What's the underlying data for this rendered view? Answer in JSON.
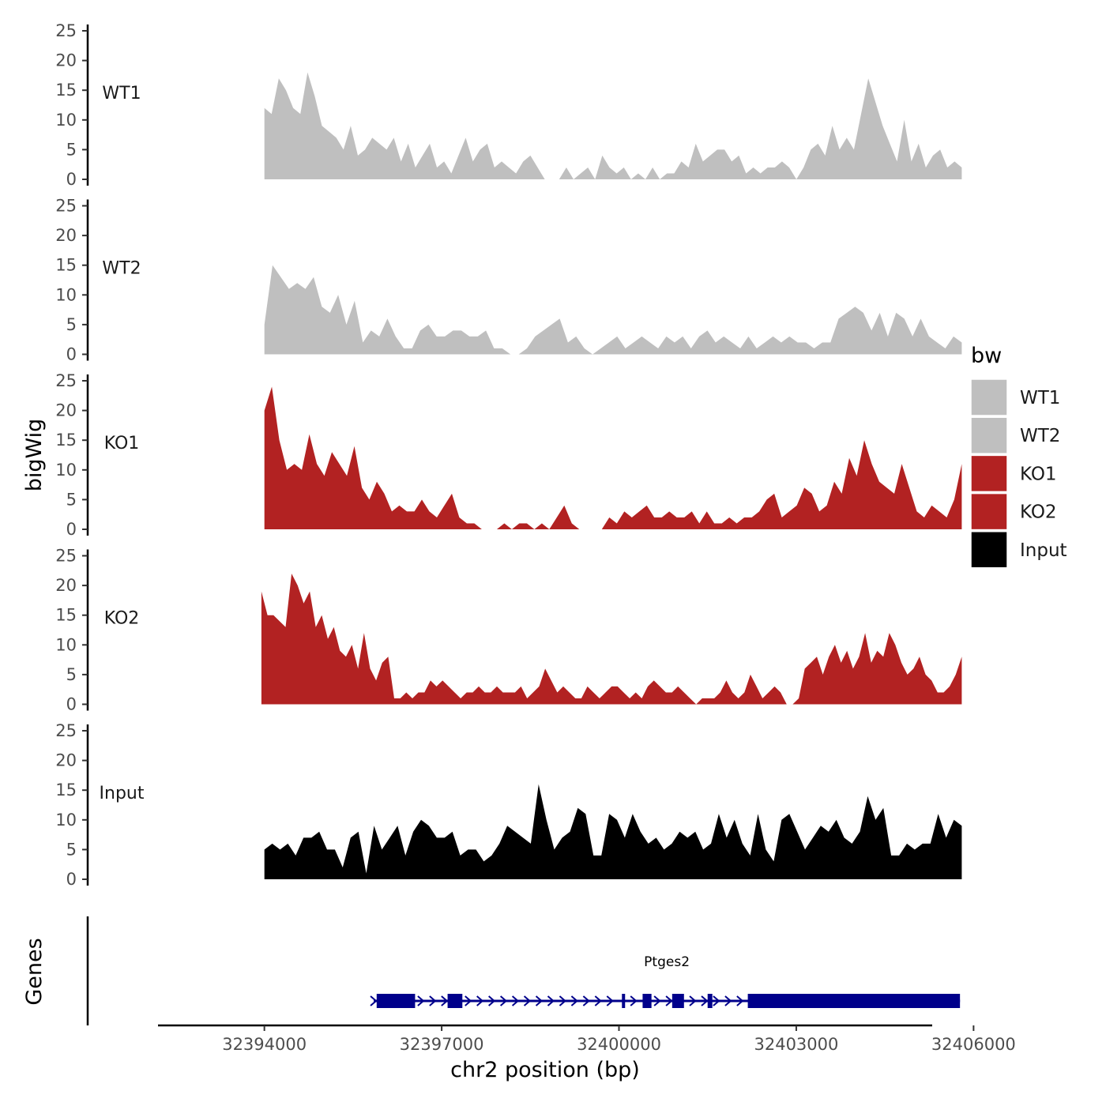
{
  "chart_data": {
    "type": "area",
    "ylabel": "bigWig",
    "xlabel": "chr2 position (bp)",
    "genes_label": "Genes",
    "legend": {
      "title": "bw",
      "entries": [
        {
          "label": "WT1",
          "color": "#bfbfbf"
        },
        {
          "label": "WT2",
          "color": "#bfbfbf"
        },
        {
          "label": "KO1",
          "color": "#b22222"
        },
        {
          "label": "KO2",
          "color": "#b22222"
        },
        {
          "label": "Input",
          "color": "#000000"
        }
      ]
    },
    "xlim": [
      32392200,
      32405300
    ],
    "x_ticks": [
      32394000,
      32397000,
      32400000,
      32403000,
      32406000
    ],
    "x_tick_labels": [
      "32394000",
      "32397000",
      "32400000",
      "32403000",
      "32406000"
    ],
    "ylim": [
      0,
      25
    ],
    "y_ticks": [
      0,
      5,
      10,
      15,
      20,
      25
    ],
    "y_tick_labels": [
      "0",
      "5",
      "10",
      "15",
      "20",
      "25"
    ],
    "series": [
      {
        "name": "WT1",
        "color": "#bfbfbf",
        "x_start": 32394000,
        "x_end": 32405800,
        "values": [
          12,
          11,
          17,
          15,
          12,
          11,
          18,
          14,
          9,
          8,
          7,
          5,
          9,
          4,
          5,
          7,
          6,
          5,
          7,
          3,
          6,
          2,
          4,
          6,
          2,
          3,
          1,
          4,
          7,
          3,
          5,
          6,
          2,
          3,
          2,
          1,
          3,
          4,
          2,
          0,
          0,
          0,
          2,
          0,
          1,
          2,
          0,
          4,
          2,
          1,
          2,
          0,
          1,
          0,
          2,
          0,
          1,
          1,
          3,
          2,
          6,
          3,
          4,
          5,
          5,
          3,
          4,
          1,
          2,
          1,
          2,
          2,
          3,
          2,
          0,
          2,
          5,
          6,
          4,
          9,
          5,
          7,
          5,
          11,
          17,
          13,
          9,
          6,
          3,
          10,
          3,
          6,
          2,
          4,
          5,
          2,
          3,
          2
        ]
      },
      {
        "name": "WT2",
        "color": "#bfbfbf",
        "x_start": 32394000,
        "x_end": 32405800,
        "values": [
          5,
          15,
          13,
          11,
          12,
          11,
          13,
          8,
          7,
          10,
          5,
          9,
          2,
          4,
          3,
          6,
          3,
          1,
          1,
          4,
          5,
          3,
          3,
          4,
          4,
          3,
          3,
          4,
          1,
          1,
          0,
          0,
          1,
          3,
          4,
          5,
          6,
          2,
          3,
          1,
          0,
          1,
          2,
          3,
          1,
          2,
          3,
          2,
          1,
          3,
          2,
          3,
          1,
          3,
          4,
          2,
          3,
          2,
          1,
          3,
          1,
          2,
          3,
          2,
          3,
          2,
          2,
          1,
          2,
          2,
          6,
          7,
          8,
          7,
          4,
          7,
          3,
          7,
          6,
          3,
          6,
          3,
          2,
          1,
          3,
          2
        ]
      },
      {
        "name": "KO1",
        "color": "#b22222",
        "x_start": 32394000,
        "x_end": 32405800,
        "values": [
          20,
          24,
          15,
          10,
          11,
          10,
          16,
          11,
          9,
          13,
          11,
          9,
          14,
          7,
          5,
          8,
          6,
          3,
          4,
          3,
          3,
          5,
          3,
          2,
          4,
          6,
          2,
          1,
          1,
          0,
          0,
          0,
          1,
          0,
          1,
          1,
          0,
          1,
          0,
          2,
          4,
          1,
          0,
          0,
          0,
          0,
          2,
          1,
          3,
          2,
          3,
          4,
          2,
          2,
          3,
          2,
          2,
          3,
          1,
          3,
          1,
          1,
          2,
          1,
          2,
          2,
          3,
          5,
          6,
          2,
          3,
          4,
          7,
          6,
          3,
          4,
          8,
          6,
          12,
          9,
          15,
          11,
          8,
          7,
          6,
          11,
          7,
          3,
          2,
          4,
          3,
          2,
          5,
          11
        ]
      },
      {
        "name": "KO2",
        "color": "#b22222",
        "x_start": 32393950,
        "x_end": 32405800,
        "values": [
          19,
          15,
          15,
          14,
          13,
          22,
          20,
          17,
          19,
          13,
          15,
          11,
          13,
          9,
          8,
          10,
          6,
          12,
          6,
          4,
          7,
          8,
          1,
          1,
          2,
          1,
          2,
          2,
          4,
          3,
          4,
          3,
          2,
          1,
          2,
          2,
          3,
          2,
          2,
          3,
          2,
          2,
          2,
          3,
          1,
          2,
          3,
          6,
          4,
          2,
          3,
          2,
          1,
          1,
          3,
          2,
          1,
          2,
          3,
          3,
          2,
          1,
          2,
          1,
          3,
          4,
          3,
          2,
          2,
          3,
          2,
          1,
          0,
          1,
          1,
          1,
          2,
          4,
          2,
          1,
          2,
          5,
          3,
          1,
          2,
          3,
          2,
          0,
          0,
          1,
          6,
          7,
          8,
          5,
          8,
          10,
          7,
          9,
          6,
          8,
          12,
          7,
          9,
          8,
          12,
          10,
          7,
          5,
          6,
          8,
          5,
          4,
          2,
          2,
          3,
          5,
          8
        ]
      },
      {
        "name": "Input",
        "color": "#000000",
        "x_start": 32394000,
        "x_end": 32405800,
        "values": [
          5,
          6,
          5,
          6,
          4,
          7,
          7,
          8,
          5,
          5,
          2,
          7,
          8,
          1,
          9,
          5,
          7,
          9,
          4,
          8,
          10,
          9,
          7,
          7,
          8,
          4,
          5,
          5,
          3,
          4,
          6,
          9,
          8,
          7,
          6,
          16,
          10,
          5,
          7,
          8,
          12,
          11,
          4,
          4,
          11,
          10,
          7,
          11,
          8,
          6,
          7,
          5,
          6,
          8,
          7,
          8,
          5,
          6,
          11,
          7,
          10,
          6,
          4,
          11,
          5,
          3,
          10,
          11,
          8,
          5,
          7,
          9,
          8,
          10,
          7,
          6,
          8,
          14,
          10,
          12,
          4,
          4,
          6,
          5,
          6,
          6,
          11,
          7,
          10,
          9
        ]
      }
    ],
    "gene_track": {
      "gene_name": "Ptges2",
      "strand": "+",
      "gene_start": 32395850,
      "gene_end": 32405770,
      "exons": [
        [
          32395900,
          32396550
        ],
        [
          32397100,
          32397350
        ],
        [
          32400050,
          32400100
        ],
        [
          32400400,
          32400550
        ],
        [
          32400900,
          32401100
        ],
        [
          32401500,
          32401580
        ],
        [
          32402180,
          32405770
        ]
      ]
    }
  }
}
